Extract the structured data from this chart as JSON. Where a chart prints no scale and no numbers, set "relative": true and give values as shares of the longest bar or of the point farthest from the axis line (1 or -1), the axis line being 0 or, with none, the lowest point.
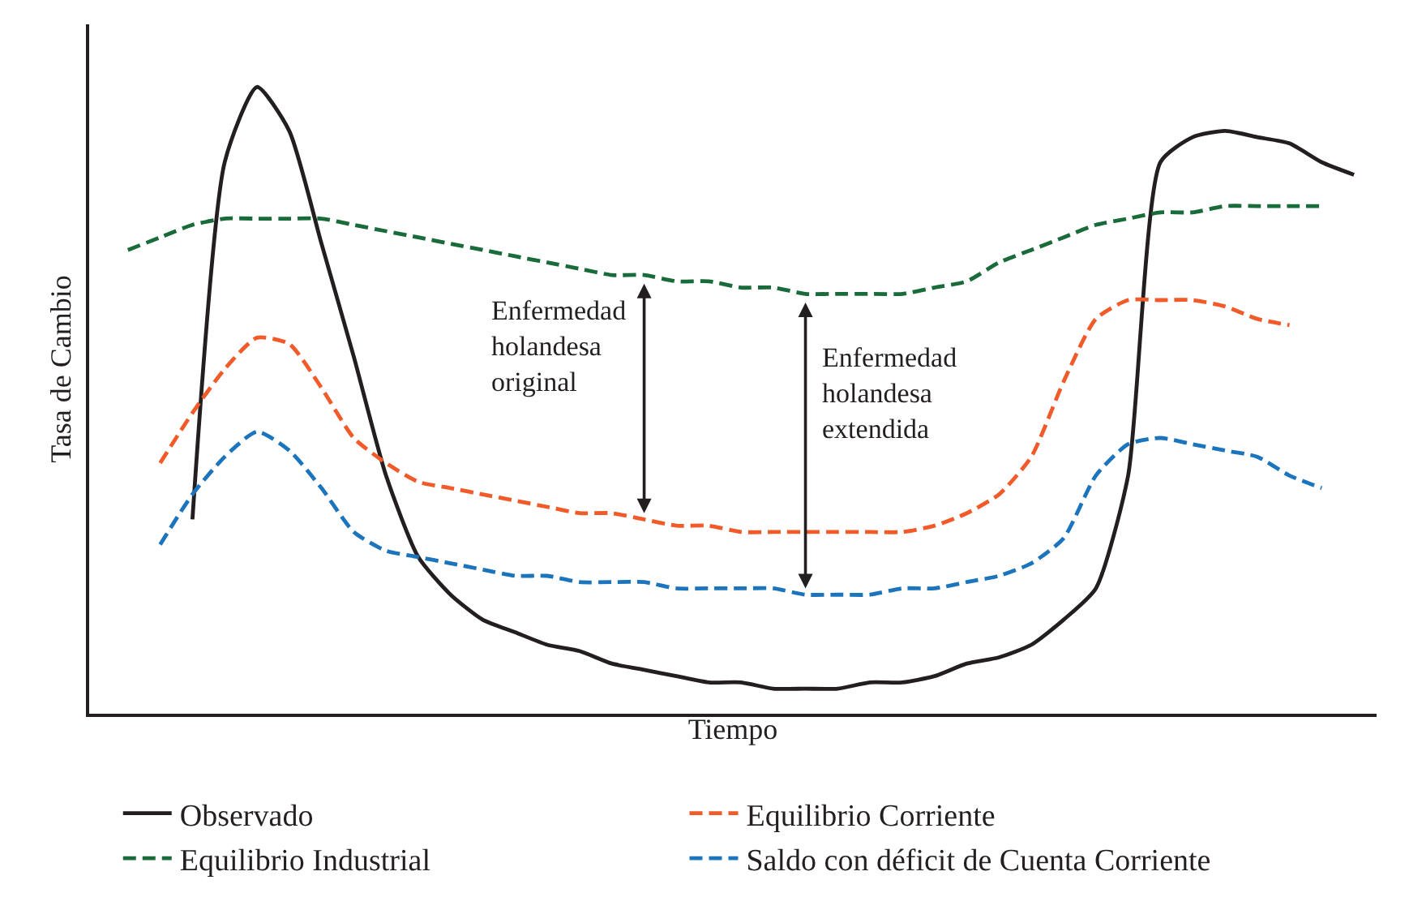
{
  "chart_data": {
    "type": "line",
    "relative": true,
    "xlabel": "Tiempo",
    "ylabel": "Tasa de Cambio",
    "legend": "bottom",
    "line_style": "solid",
    "marker": "none",
    "tick_labels": false,
    "categories": [
      null,
      null,
      null,
      null,
      null,
      null,
      null,
      null,
      null,
      null,
      null,
      null,
      null,
      null,
      null,
      null,
      null,
      null,
      null,
      null,
      null,
      null,
      null,
      null,
      null,
      null,
      null,
      null,
      null,
      null,
      null,
      null,
      null,
      null,
      null,
      null,
      null,
      null,
      null
    ],
    "series": [
      {
        "name": "Observado",
        "color": "#231f20",
        "values": [
          null,
          null,
          0.31,
          0.88,
          1.0,
          0.93,
          0.75,
          0.57,
          0.38,
          0.25,
          0.19,
          0.15,
          0.13,
          0.11,
          0.1,
          0.08,
          0.07,
          0.06,
          0.05,
          0.05,
          0.04,
          0.04,
          0.04,
          0.05,
          0.05,
          0.06,
          0.08,
          0.09,
          0.11,
          0.15,
          0.2,
          0.38,
          0.88,
          0.92,
          0.93,
          0.92,
          0.91,
          0.88,
          0.86
        ]
      },
      {
        "name": "Equilibrio Corriente",
        "color": "#f15a29",
        "line_style": "dashed",
        "values": [
          null,
          0.4,
          0.48,
          0.55,
          0.6,
          0.59,
          0.52,
          0.44,
          0.4,
          0.37,
          0.36,
          0.35,
          0.34,
          0.33,
          0.32,
          0.32,
          0.31,
          0.3,
          0.3,
          0.29,
          0.29,
          0.29,
          0.29,
          0.29,
          0.29,
          0.3,
          0.32,
          0.35,
          0.41,
          0.53,
          0.63,
          0.66,
          0.66,
          0.66,
          0.65,
          0.63,
          0.62,
          null,
          null
        ]
      },
      {
        "name": "Equilibrio Industrial",
        "color": "#1a6b3a",
        "line_style": "dashed",
        "values": [
          0.74,
          0.76,
          0.78,
          0.79,
          0.79,
          0.79,
          0.79,
          0.78,
          0.77,
          0.76,
          0.75,
          0.74,
          0.73,
          0.72,
          0.71,
          0.7,
          0.7,
          0.69,
          0.69,
          0.68,
          0.68,
          0.67,
          0.67,
          0.67,
          0.67,
          0.68,
          0.69,
          0.72,
          0.74,
          0.76,
          0.78,
          0.79,
          0.8,
          0.8,
          0.81,
          0.81,
          0.81,
          0.81,
          null
        ]
      },
      {
        "name": "Saldo con déficit de Cuenta Corriente",
        "color": "#1c75bc",
        "line_style": "dashed",
        "values": [
          null,
          0.27,
          0.35,
          0.41,
          0.45,
          0.42,
          0.36,
          0.29,
          0.26,
          0.25,
          0.24,
          0.23,
          0.22,
          0.22,
          0.21,
          0.21,
          0.21,
          0.2,
          0.2,
          0.2,
          0.2,
          0.19,
          0.19,
          0.19,
          0.2,
          0.2,
          0.21,
          0.22,
          0.24,
          0.28,
          0.38,
          0.43,
          0.44,
          0.43,
          0.42,
          0.41,
          0.38,
          0.36,
          null
        ]
      }
    ],
    "annotations": [
      "Enfermedad\nholandesa\noriginal",
      "Enfermedad\nholandesa\nextendida"
    ]
  }
}
